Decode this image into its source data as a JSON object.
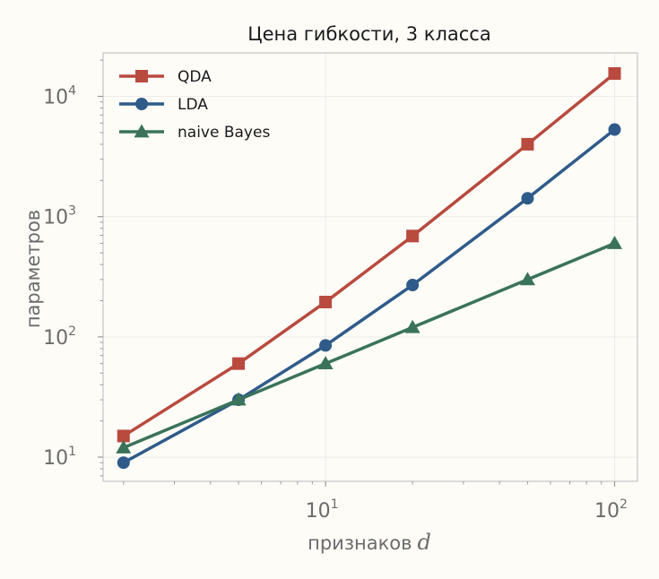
{
  "chart_data": {
    "type": "line",
    "title": "Цена гибкости, 3 класса",
    "xlabel": "признаков",
    "xlabel_var": "d",
    "ylabel": "параметров",
    "x_scale": "log",
    "y_scale": "log",
    "xlim": [
      1.7,
      120
    ],
    "ylim": [
      6.3,
      23000
    ],
    "x_ticks": [
      {
        "base": "10",
        "exp": "1",
        "value": 10
      },
      {
        "base": "10",
        "exp": "2",
        "value": 100
      }
    ],
    "y_ticks": [
      {
        "base": "10",
        "exp": "1",
        "value": 10
      },
      {
        "base": "10",
        "exp": "2",
        "value": 100
      },
      {
        "base": "10",
        "exp": "3",
        "value": 1000
      },
      {
        "base": "10",
        "exp": "4",
        "value": 10000
      }
    ],
    "grid": true,
    "legend_position": "top-left",
    "x": [
      2,
      5,
      10,
      20,
      50,
      100
    ],
    "series": [
      {
        "name": "QDA",
        "marker": "square",
        "color": "#b94a3e",
        "values": [
          15,
          60,
          195,
          690,
          4000,
          15500
        ]
      },
      {
        "name": "LDA",
        "marker": "circle",
        "color": "#2f5b8a",
        "values": [
          9,
          30,
          85,
          270,
          1420,
          5300
        ]
      },
      {
        "name": "naive Bayes",
        "marker": "triangle",
        "color": "#3a7359",
        "values": [
          12,
          30,
          60,
          120,
          300,
          600
        ]
      }
    ]
  }
}
